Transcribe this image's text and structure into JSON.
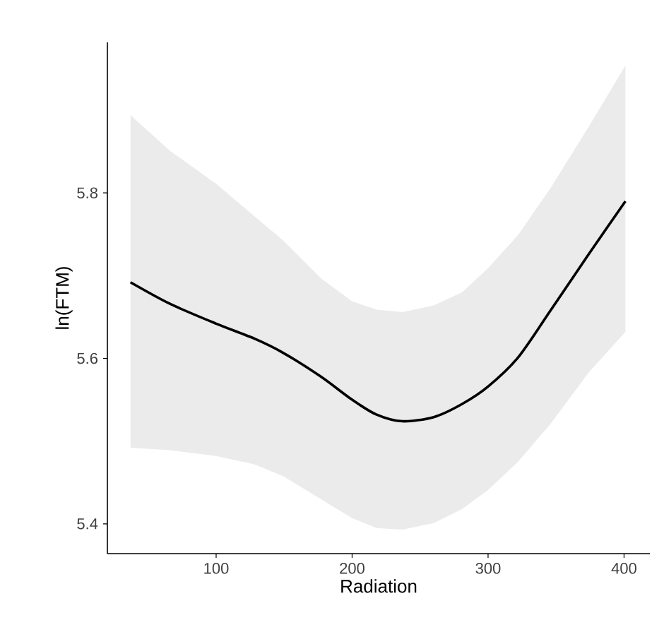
{
  "chart_data": {
    "type": "line",
    "xlabel": "Radiation",
    "ylabel": "ln(FTM)",
    "x": [
      37,
      66,
      100,
      128,
      149,
      177,
      200,
      218,
      237,
      260,
      281,
      300,
      322,
      346,
      374,
      401
    ],
    "xlim": [
      20,
      419
    ],
    "ylim": [
      5.364,
      5.982
    ],
    "xticks": [
      100,
      200,
      300,
      400
    ],
    "yticks": [
      5.4,
      5.6,
      5.8
    ],
    "series": [
      {
        "color": "#000000",
        "values": [
          5.692,
          5.666,
          5.642,
          5.624,
          5.607,
          5.578,
          5.55,
          5.532,
          5.524,
          5.529,
          5.545,
          5.566,
          5.601,
          5.658,
          5.726,
          5.79
        ],
        "lower": [
          5.492,
          5.489,
          5.482,
          5.472,
          5.458,
          5.43,
          5.407,
          5.395,
          5.393,
          5.401,
          5.418,
          5.441,
          5.475,
          5.521,
          5.583,
          5.632
        ],
        "upper": [
          5.894,
          5.851,
          5.811,
          5.772,
          5.743,
          5.697,
          5.669,
          5.659,
          5.656,
          5.664,
          5.68,
          5.709,
          5.749,
          5.806,
          5.88,
          5.954
        ]
      }
    ]
  }
}
